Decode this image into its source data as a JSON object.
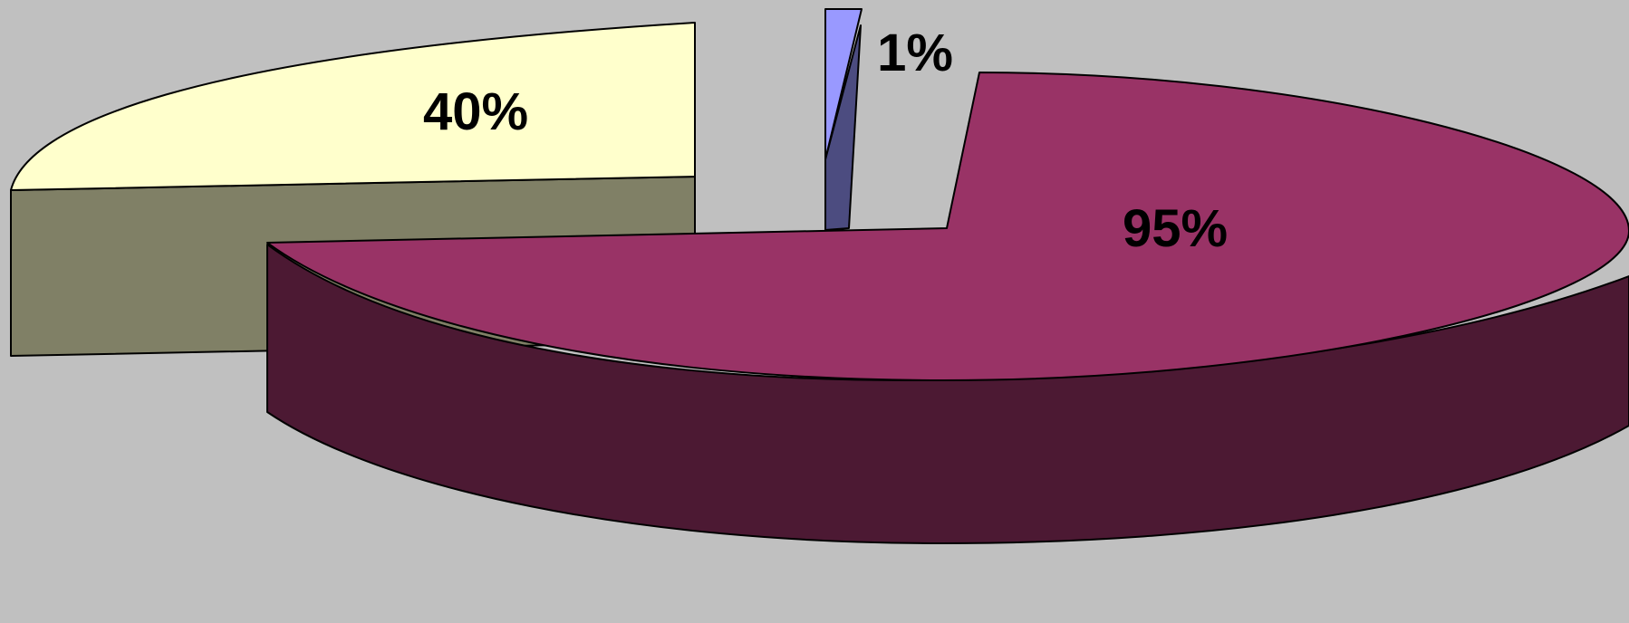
{
  "chart_data": {
    "type": "pie",
    "style": "3d-exploded",
    "slices": [
      {
        "label": "40%",
        "value": 40,
        "top_color": "#ffffcc",
        "side_color": "#808066"
      },
      {
        "label": "1%",
        "value": 1,
        "top_color": "#9999ff",
        "side_color": "#4c4c80"
      },
      {
        "label": "95%",
        "value": 95,
        "top_color": "#993366",
        "side_color": "#4c1933"
      }
    ],
    "legend": "none",
    "background_color": "#c0c0c0"
  }
}
